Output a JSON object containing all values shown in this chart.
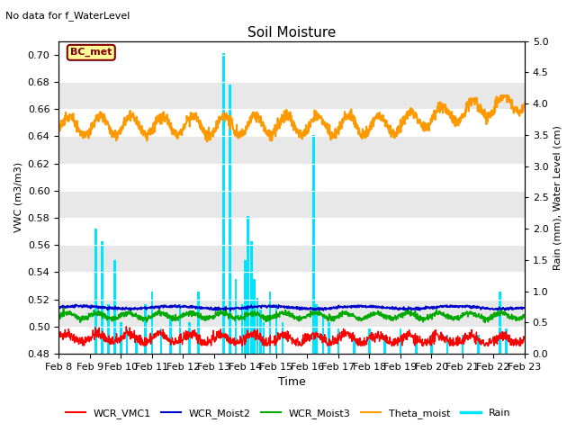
{
  "title": "Soil Moisture",
  "subtitle": "No data for f_WaterLevel",
  "xlabel": "Time",
  "ylabel_left": "VWC (m3/m3)",
  "ylabel_right": "Rain (mm), Water Level (cm)",
  "ylim_left": [
    0.48,
    0.71
  ],
  "ylim_right": [
    0.0,
    5.0
  ],
  "yticks_left": [
    0.48,
    0.5,
    0.52,
    0.54,
    0.56,
    0.58,
    0.6,
    0.62,
    0.64,
    0.66,
    0.68,
    0.7
  ],
  "yticks_right": [
    0.0,
    0.5,
    1.0,
    1.5,
    2.0,
    2.5,
    3.0,
    3.5,
    4.0,
    4.5,
    5.0
  ],
  "xtick_labels": [
    "Feb 8",
    "Feb 9",
    "Feb 10",
    "Feb 11",
    "Feb 12",
    "Feb 13",
    "Feb 14",
    "Feb 15",
    "Feb 16",
    "Feb 17",
    "Feb 18",
    "Feb 19",
    "Feb 20",
    "Feb 21",
    "Feb 22",
    "Feb 23"
  ],
  "legend_box_text": "BC_met",
  "legend_box_color": "#ffff99",
  "legend_box_border": "#800000",
  "background_band_color": "#e8e8e8",
  "colors": {
    "WCR_VMC1": "#ff0000",
    "WCR_Moist2": "#0000cc",
    "WCR_Moist3": "#00aa00",
    "Theta_moist": "#ff9900",
    "Rain": "#00e5ff"
  },
  "rain_scale_factor": 0.046,
  "rain_baseline": 0.48
}
